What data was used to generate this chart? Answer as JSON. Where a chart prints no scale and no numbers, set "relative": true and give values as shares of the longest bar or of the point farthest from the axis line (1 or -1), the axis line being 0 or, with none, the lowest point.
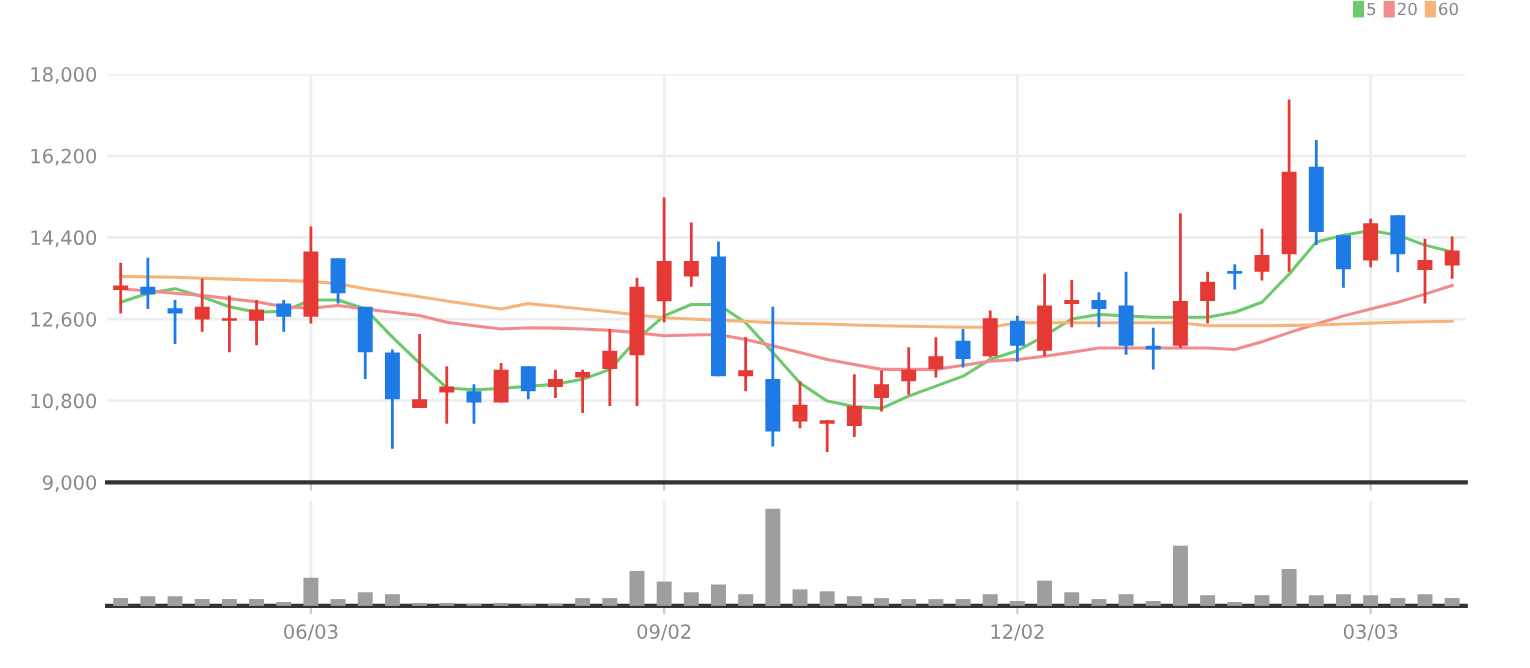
{
  "chart_data": [
    {
      "type": "candlestick",
      "categories": [
        null,
        null,
        null,
        null,
        null,
        null,
        null,
        null,
        null,
        null,
        null,
        null,
        null,
        null,
        null,
        null,
        null,
        null,
        null,
        null,
        null,
        null,
        null,
        null,
        null,
        null,
        null,
        null,
        null,
        null,
        null,
        null,
        null,
        null,
        null,
        null,
        null,
        null,
        null,
        null,
        null,
        null,
        null,
        null,
        null,
        null,
        null,
        null,
        null,
        null
      ],
      "ohlc": [
        [
          13240,
          13840,
          12720,
          13340
        ],
        [
          13310,
          13950,
          12820,
          13140
        ],
        [
          12840,
          13020,
          12050,
          12720
        ],
        [
          12590,
          13490,
          12320,
          12870
        ],
        [
          12560,
          13120,
          11870,
          12620
        ],
        [
          12560,
          13020,
          12020,
          12810
        ],
        [
          12940,
          13020,
          12320,
          12650
        ],
        [
          12650,
          14640,
          12500,
          14090
        ],
        [
          13940,
          13940,
          12940,
          13170
        ],
        [
          12870,
          12870,
          11280,
          11870
        ],
        [
          11860,
          11930,
          9740,
          10830
        ],
        [
          10640,
          12270,
          10640,
          10830
        ],
        [
          10980,
          11560,
          10290,
          11110
        ],
        [
          11010,
          11160,
          10290,
          10760
        ],
        [
          10760,
          11630,
          10760,
          11480
        ],
        [
          11560,
          11560,
          10830,
          11010
        ],
        [
          11100,
          11480,
          10860,
          11280
        ],
        [
          11310,
          11480,
          10530,
          11430
        ],
        [
          11500,
          12380,
          10680,
          11900
        ],
        [
          11800,
          13510,
          10680,
          13310
        ],
        [
          12990,
          15280,
          12530,
          13880
        ],
        [
          13540,
          14730,
          13310,
          13880
        ],
        [
          13980,
          14310,
          11340,
          11340
        ],
        [
          11340,
          12200,
          11010,
          11470
        ],
        [
          11280,
          12870,
          9790,
          10120
        ],
        [
          10340,
          11230,
          10190,
          10710
        ],
        [
          10290,
          10370,
          9670,
          10370
        ],
        [
          10240,
          11380,
          10000,
          10680
        ],
        [
          10860,
          11460,
          10560,
          11160
        ],
        [
          11230,
          11980,
          10930,
          11480
        ],
        [
          11500,
          12200,
          11310,
          11780
        ],
        [
          12120,
          12380,
          11530,
          11720
        ],
        [
          11780,
          12790,
          11750,
          12620
        ],
        [
          12560,
          12670,
          11660,
          12010
        ],
        [
          11900,
          13600,
          11780,
          12900
        ],
        [
          12930,
          13460,
          12420,
          13020
        ],
        [
          13020,
          13190,
          12420,
          12820
        ],
        [
          12900,
          13640,
          11810,
          12010
        ],
        [
          12010,
          12410,
          11490,
          11930
        ],
        [
          12010,
          14930,
          11960,
          13000
        ],
        [
          13000,
          13640,
          12500,
          13420
        ],
        [
          13660,
          13810,
          13250,
          13600
        ],
        [
          13640,
          14590,
          13450,
          14010
        ],
        [
          14030,
          17440,
          13640,
          15850
        ],
        [
          15960,
          16550,
          14230,
          14520
        ],
        [
          14450,
          14450,
          13290,
          13700
        ],
        [
          13890,
          14810,
          13740,
          14710
        ],
        [
          14890,
          14890,
          13630,
          14030
        ],
        [
          13680,
          14370,
          12940,
          13900
        ],
        [
          13780,
          14420,
          13490,
          14110
        ]
      ],
      "colors": [
        "#e53935",
        "#1e7be6",
        "#1e7be6",
        "#e53935",
        "#e53935",
        "#e53935",
        "#1e7be6",
        "#e53935",
        "#1e7be6",
        "#1e7be6",
        "#1e7be6",
        "#e53935",
        "#e53935",
        "#1e7be6",
        "#e53935",
        "#1e7be6",
        "#e53935",
        "#e53935",
        "#e53935",
        "#e53935",
        "#e53935",
        "#e53935",
        "#1e7be6",
        "#e53935",
        "#1e7be6",
        "#e53935",
        "#e53935",
        "#e53935",
        "#e53935",
        "#e53935",
        "#e53935",
        "#1e7be6",
        "#e53935",
        "#1e7be6",
        "#e53935",
        "#e53935",
        "#1e7be6",
        "#1e7be6",
        "#1e7be6",
        "#e53935",
        "#e53935",
        "#1e7be6",
        "#e53935",
        "#e53935",
        "#1e7be6",
        "#1e7be6",
        "#e53935",
        "#1e7be6",
        "#e53935",
        "#e53935"
      ],
      "series": [
        {
          "name": "5",
          "type": "line",
          "color": "#6cc96c",
          "values": [
            12970,
            13170,
            13270,
            13090,
            12870,
            12750,
            12770,
            13020,
            13020,
            12820,
            12200,
            11630,
            11080,
            11040,
            11070,
            11120,
            11160,
            11270,
            11490,
            12150,
            12670,
            12920,
            12920,
            12520,
            11860,
            11190,
            10790,
            10670,
            10630,
            10900,
            11120,
            11340,
            11710,
            11900,
            12230,
            12600,
            12700,
            12670,
            12640,
            12640,
            12640,
            12750,
            12970,
            13590,
            14300,
            14450,
            14550,
            14450,
            14230,
            14080
          ]
        },
        {
          "name": "20",
          "type": "line",
          "color": "#f28b8b",
          "values": [
            13270,
            13220,
            13170,
            13120,
            13050,
            12980,
            12870,
            12840,
            12900,
            12820,
            12750,
            12680,
            12530,
            12450,
            12380,
            12410,
            12400,
            12380,
            12350,
            12300,
            12230,
            12250,
            12260,
            12150,
            12010,
            11860,
            11710,
            11600,
            11490,
            11490,
            11490,
            11580,
            11670,
            11710,
            11780,
            11870,
            11960,
            11960,
            11960,
            11960,
            11960,
            11930,
            12100,
            12300,
            12490,
            12670,
            12820,
            12970,
            13150,
            13340
          ]
        },
        {
          "name": "60",
          "type": "line",
          "color": "#f5b47a",
          "values": [
            13540,
            13530,
            13520,
            13500,
            13480,
            13460,
            13450,
            13430,
            13380,
            13270,
            13180,
            13090,
            13000,
            12910,
            12820,
            12940,
            12880,
            12820,
            12760,
            12690,
            12630,
            12600,
            12570,
            12550,
            12520,
            12500,
            12490,
            12470,
            12450,
            12440,
            12430,
            12420,
            12420,
            12520,
            12520,
            12520,
            12520,
            12520,
            12520,
            12520,
            12450,
            12450,
            12450,
            12460,
            12470,
            12490,
            12510,
            12530,
            12540,
            12550
          ]
        }
      ],
      "ylim": [
        9000,
        18000
      ],
      "yticks": [
        {
          "value": 9000,
          "label": "9,000"
        },
        {
          "value": 10800,
          "label": "10,800"
        },
        {
          "value": 12600,
          "label": "12,600"
        },
        {
          "value": 14400,
          "label": "14,400"
        },
        {
          "value": 16200,
          "label": "16,200"
        },
        {
          "value": 18000,
          "label": "18,000"
        }
      ],
      "grid": true,
      "legend": "top right",
      "tick_labels": "y"
    },
    {
      "type": "bar",
      "categories": [
        null,
        null,
        null,
        null,
        null,
        null,
        null,
        "06/03",
        null,
        null,
        null,
        null,
        null,
        null,
        null,
        null,
        null,
        null,
        null,
        null,
        "09/02",
        null,
        null,
        null,
        null,
        null,
        null,
        null,
        null,
        null,
        null,
        null,
        null,
        "12/02",
        null,
        null,
        null,
        null,
        null,
        null,
        null,
        null,
        null,
        null,
        null,
        null,
        "03/03",
        null,
        null,
        null
      ],
      "values": [
        0.08,
        0.1,
        0.1,
        0.07,
        0.07,
        0.07,
        0.04,
        0.29,
        0.07,
        0.14,
        0.12,
        0.03,
        0.03,
        0.02,
        0.03,
        0.02,
        0.02,
        0.08,
        0.08,
        0.36,
        0.25,
        0.14,
        0.22,
        0.12,
        1,
        0.17,
        0.15,
        0.1,
        0.08,
        0.07,
        0.07,
        0.07,
        0.12,
        0.05,
        0.26,
        0.14,
        0.07,
        0.12,
        0.05,
        0.62,
        0.11,
        0.04,
        0.11,
        0.38,
        0.11,
        0.12,
        0.11,
        0.08,
        0.12,
        0.08
      ],
      "color": "#9e9e9e",
      "relative": true,
      "grid": "x",
      "tick_labels": "x"
    }
  ]
}
